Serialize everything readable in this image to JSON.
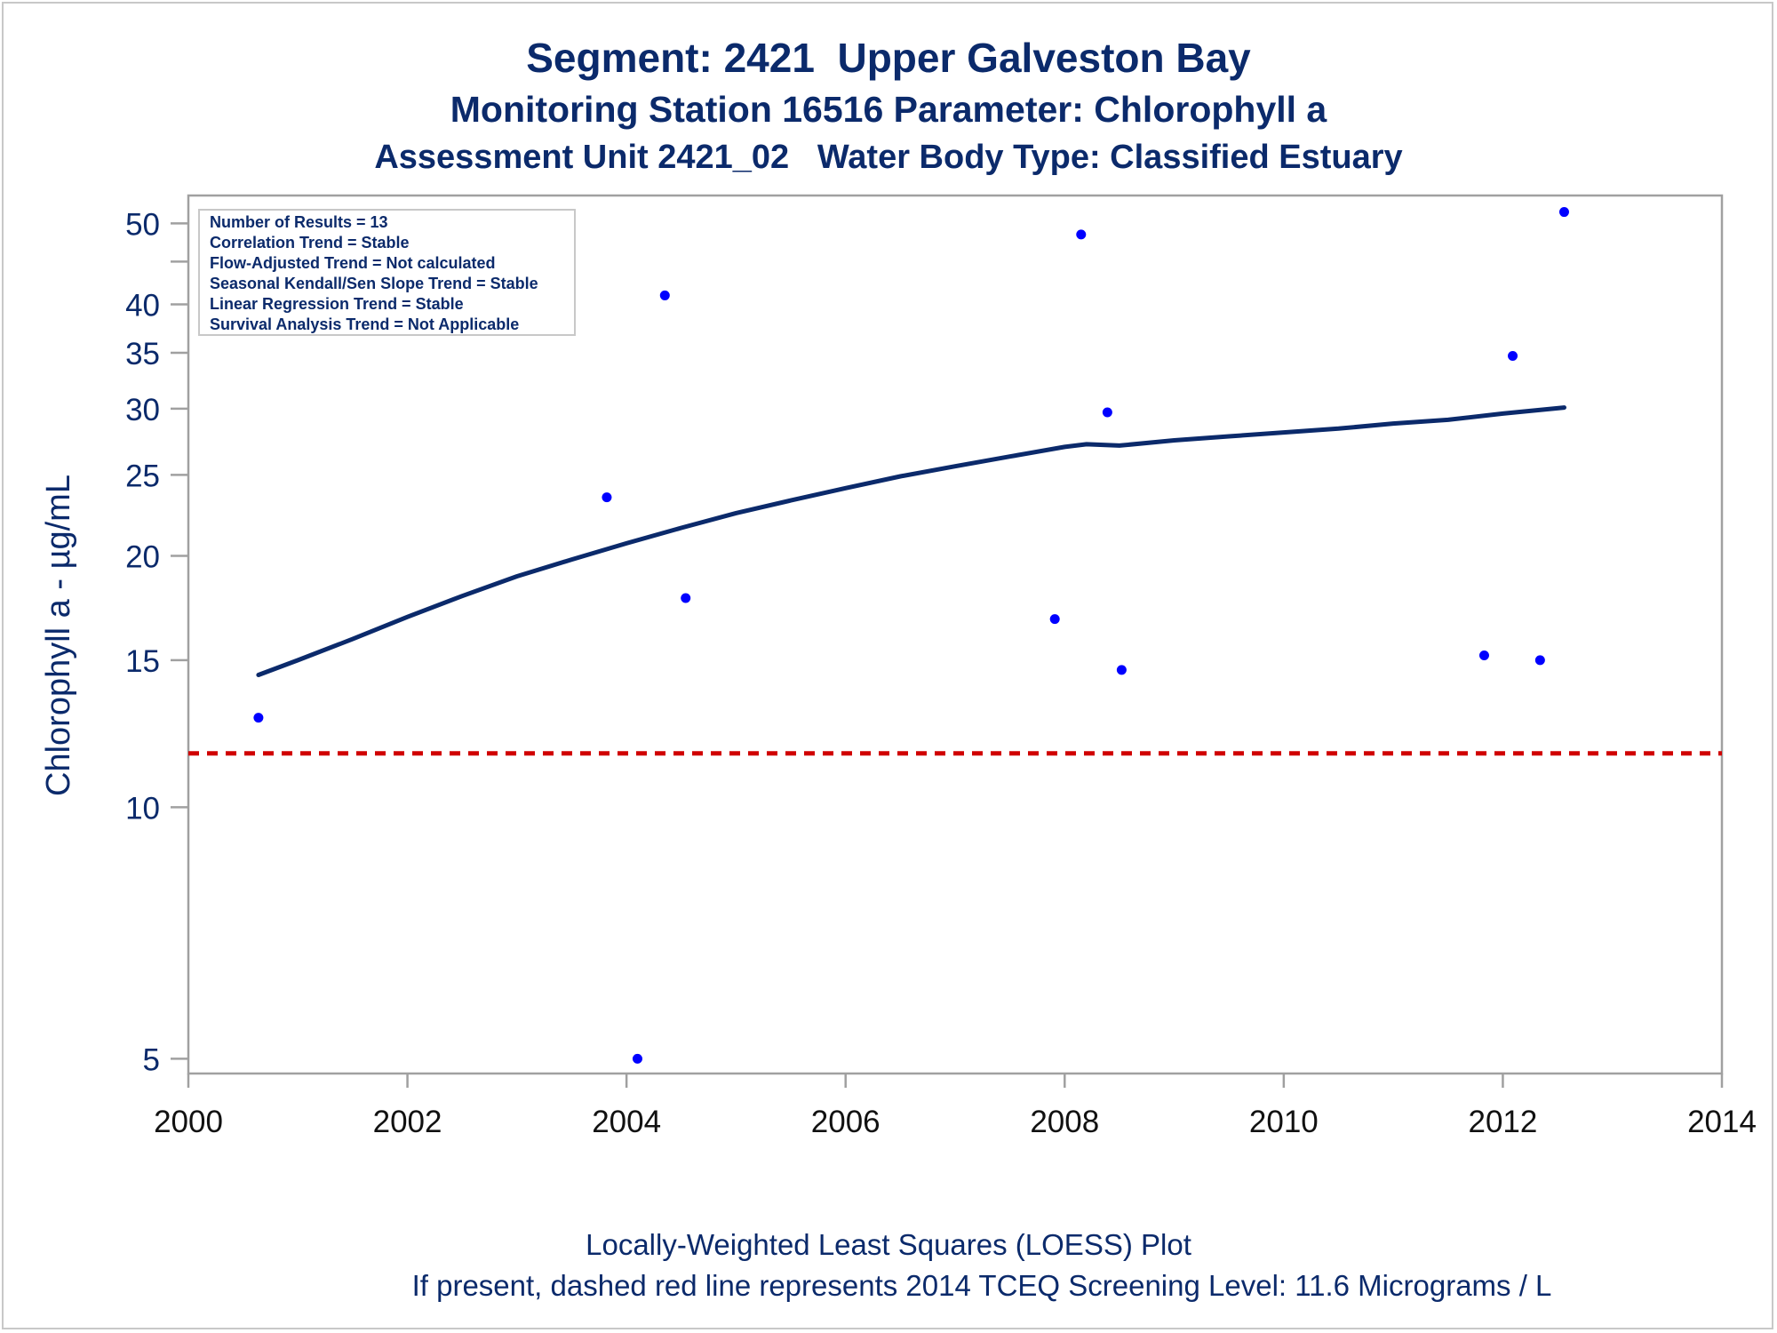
{
  "header": {
    "title": "Segment: 2421  Upper Galveston Bay",
    "subtitle": "Monitoring Station 16516 Parameter: Chlorophyll a",
    "subtitle2": "Assessment Unit 2421_02   Water Body Type: Classified Estuary"
  },
  "footer": {
    "line1": "Locally-Weighted Least Squares (LOESS) Plot",
    "line2": "If present, dashed red line represents 2014 TCEQ Screening Level: 11.6 Micrograms / L"
  },
  "colors": {
    "text": "#0b2a6b",
    "points": "#0000ff",
    "loess": "#0b2a6b",
    "reference": "#d00000",
    "axis": "#a0a0a0"
  },
  "chart_data": {
    "type": "scatter",
    "title": "Segment: 2421  Upper Galveston Bay",
    "ylabel": "Chlorophyll a -  µg/mL",
    "xlabel": "",
    "yscale": "log",
    "xlim": [
      2000,
      2014
    ],
    "ylim": [
      4.8,
      54
    ],
    "xticks": [
      2000,
      2002,
      2004,
      2006,
      2008,
      2010,
      2012,
      2014
    ],
    "yticks": [
      5,
      10,
      15,
      20,
      25,
      30,
      35,
      40,
      50
    ],
    "yminor_ticks": [
      45
    ],
    "legend_box": {
      "placement": "top-left",
      "lines": [
        "Number of Results = 13",
        "Correlation Trend = Stable",
        "Flow-Adjusted Trend = Not calculated",
        "Seasonal Kendall/Sen Slope Trend = Stable",
        "Linear Regression Trend = Stable",
        "Survival Analysis Trend = Not Applicable"
      ]
    },
    "points": [
      {
        "x": 2000.64,
        "y": 12.8
      },
      {
        "x": 2003.82,
        "y": 23.5
      },
      {
        "x": 2004.1,
        "y": 5.0
      },
      {
        "x": 2004.35,
        "y": 41.0
      },
      {
        "x": 2004.54,
        "y": 17.8
      },
      {
        "x": 2007.91,
        "y": 16.8
      },
      {
        "x": 2008.15,
        "y": 48.5
      },
      {
        "x": 2008.39,
        "y": 29.7
      },
      {
        "x": 2008.52,
        "y": 14.6
      },
      {
        "x": 2011.83,
        "y": 15.2
      },
      {
        "x": 2012.09,
        "y": 34.7
      },
      {
        "x": 2012.34,
        "y": 15.0
      },
      {
        "x": 2012.56,
        "y": 51.6
      }
    ],
    "loess": [
      {
        "x": 2000.64,
        "y": 14.4
      },
      {
        "x": 2001.0,
        "y": 15.0
      },
      {
        "x": 2001.5,
        "y": 15.9
      },
      {
        "x": 2002.0,
        "y": 16.9
      },
      {
        "x": 2002.5,
        "y": 17.9
      },
      {
        "x": 2003.0,
        "y": 18.9
      },
      {
        "x": 2003.5,
        "y": 19.8
      },
      {
        "x": 2004.0,
        "y": 20.7
      },
      {
        "x": 2004.5,
        "y": 21.6
      },
      {
        "x": 2005.0,
        "y": 22.5
      },
      {
        "x": 2005.5,
        "y": 23.3
      },
      {
        "x": 2006.0,
        "y": 24.1
      },
      {
        "x": 2006.5,
        "y": 24.9
      },
      {
        "x": 2007.0,
        "y": 25.6
      },
      {
        "x": 2007.5,
        "y": 26.3
      },
      {
        "x": 2008.0,
        "y": 27.0
      },
      {
        "x": 2008.2,
        "y": 27.2
      },
      {
        "x": 2008.5,
        "y": 27.1
      },
      {
        "x": 2009.0,
        "y": 27.5
      },
      {
        "x": 2009.5,
        "y": 27.8
      },
      {
        "x": 2010.0,
        "y": 28.1
      },
      {
        "x": 2010.5,
        "y": 28.4
      },
      {
        "x": 2011.0,
        "y": 28.8
      },
      {
        "x": 2011.5,
        "y": 29.1
      },
      {
        "x": 2012.0,
        "y": 29.6
      },
      {
        "x": 2012.56,
        "y": 30.1
      }
    ],
    "reference_line": {
      "y": 11.6
    }
  }
}
